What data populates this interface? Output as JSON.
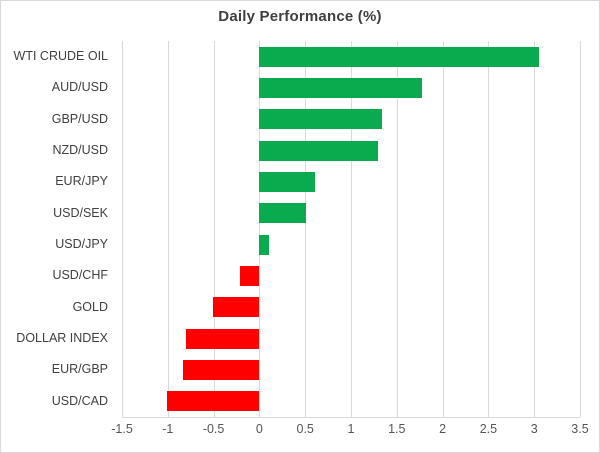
{
  "chart_data": {
    "type": "bar",
    "orientation": "horizontal",
    "title": "Daily Performance (%)",
    "categories": [
      "WTI CRUDE OIL",
      "AUD/USD",
      "GBP/USD",
      "NZD/USD",
      "EUR/JPY",
      "USD/SEK",
      "USD/JPY",
      "USD/CHF",
      "GOLD",
      "DOLLAR INDEX",
      "EUR/GBP",
      "USD/CAD"
    ],
    "values": [
      3.05,
      1.78,
      1.34,
      1.3,
      0.61,
      0.51,
      0.1,
      -0.21,
      -0.51,
      -0.8,
      -0.83,
      -1.01
    ],
    "xlabel": "",
    "ylabel": "",
    "xlim": [
      -1.5,
      3.5
    ],
    "x_ticks": [
      -1.5,
      -1,
      -0.5,
      0,
      0.5,
      1,
      1.5,
      2,
      2.5,
      3,
      3.5
    ],
    "x_tick_labels": [
      "-1.5",
      "-1",
      "-0.5",
      "0",
      "0.5",
      "1",
      "1.5",
      "2",
      "2.5",
      "3",
      "3.5"
    ],
    "grid": "vertical gridlines every 0.5",
    "legend": "none",
    "colors": {
      "positive": "#0aab4f",
      "negative": "#ff0000",
      "gridline": "#d9d9d9",
      "title_text": "#3f3f3f",
      "label_text": "#404040",
      "tick_text": "#555555"
    }
  }
}
